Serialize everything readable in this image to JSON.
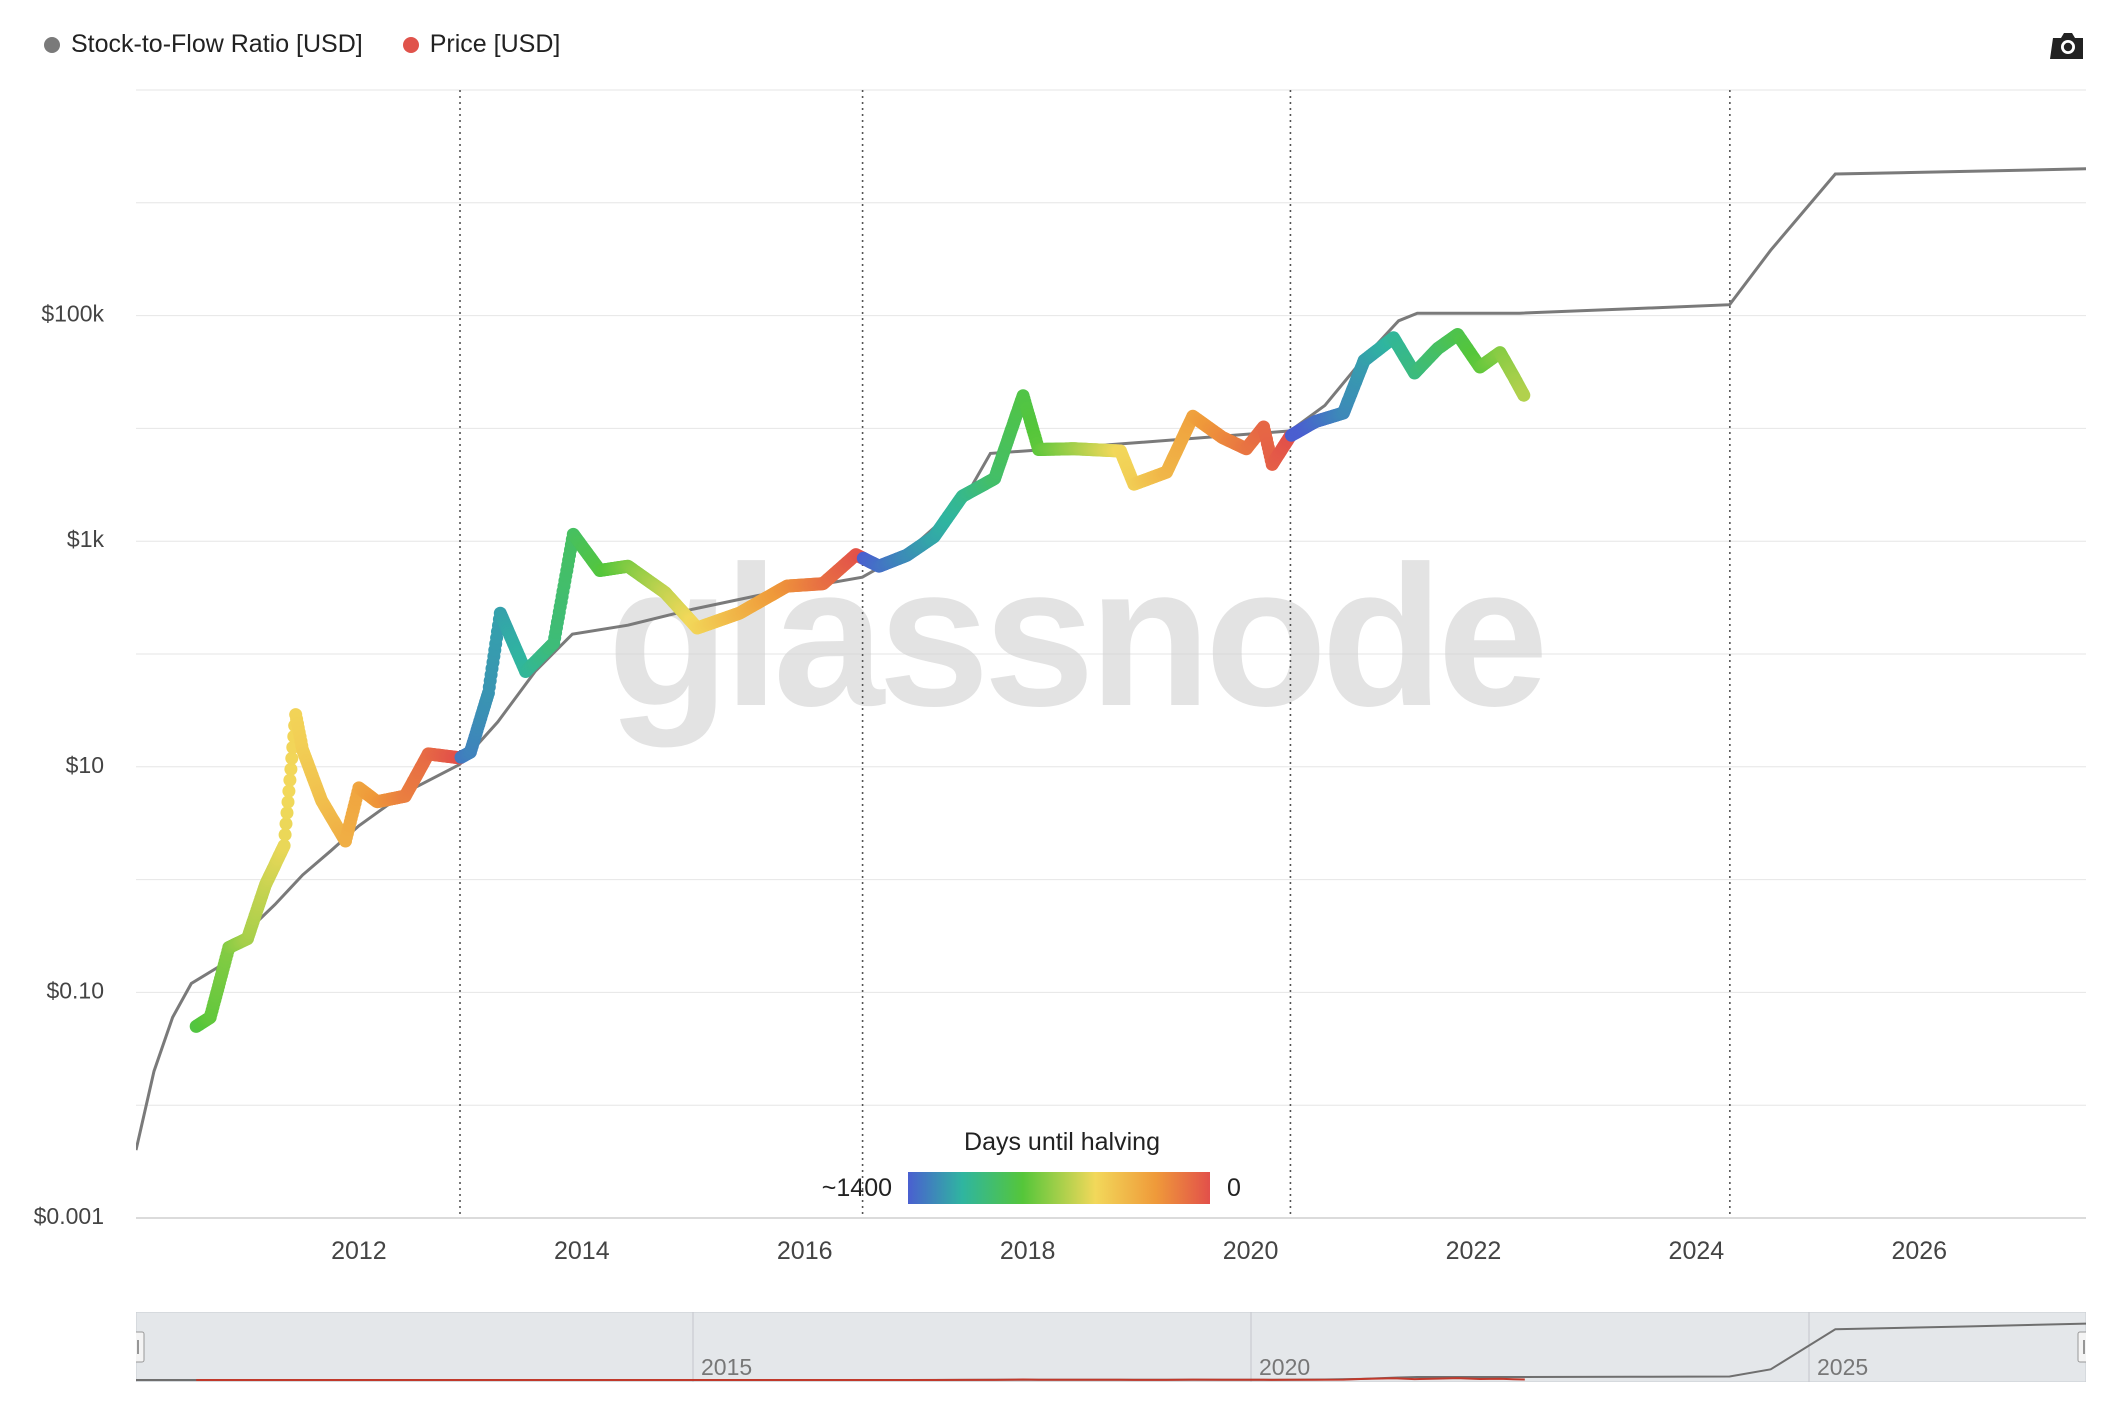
{
  "legend": {
    "items": [
      {
        "label": "Stock-to-Flow Ratio [USD]",
        "color": "#7a7a7a"
      },
      {
        "label": "Price [USD]",
        "color": "#e0534b"
      }
    ]
  },
  "toolbar": {
    "camera_icon": "camera-icon"
  },
  "watermark": "glassnode",
  "colorbar": {
    "title": "Days until halving",
    "left_label": "~1400",
    "right_label": "0",
    "colors": [
      "#4a5fd0",
      "#2fb5a0",
      "#55c63a",
      "#f2d85a",
      "#ef9a3a",
      "#e2504a"
    ]
  },
  "navigator": {
    "labels": [
      "2015",
      "2020",
      "2025"
    ],
    "handle_left_icon": "drag-handle-icon",
    "handle_right_icon": "drag-handle-icon"
  },
  "chart_data": {
    "type": "line",
    "title": "",
    "xlabel": "",
    "ylabel": "",
    "y_scale": "log",
    "xlim": [
      "2010-01-01",
      "2027-07-01"
    ],
    "ylim": [
      0.001,
      10000000
    ],
    "x_ticks": [
      "2012",
      "2014",
      "2016",
      "2018",
      "2020",
      "2022",
      "2024",
      "2026"
    ],
    "y_ticks": [
      {
        "value": 0.001,
        "label": "$0.001"
      },
      {
        "value": 0.1,
        "label": "$0.10"
      },
      {
        "value": 10,
        "label": "$10"
      },
      {
        "value": 1000,
        "label": "$1k"
      },
      {
        "value": 100000,
        "label": "$100k"
      }
    ],
    "halvings": [
      "2012-11-28",
      "2016-07-09",
      "2020-05-11",
      "2024-04-20"
    ],
    "grid": true,
    "legend_position": "top-left",
    "series": [
      {
        "name": "Stock-to-Flow Ratio [USD]",
        "color": "#7a7a7a",
        "points": [
          [
            "2010-01-01",
            0.004
          ],
          [
            "2010-03-01",
            0.02
          ],
          [
            "2010-05-01",
            0.06
          ],
          [
            "2010-07-01",
            0.12
          ],
          [
            "2010-10-01",
            0.17
          ],
          [
            "2011-01-01",
            0.35
          ],
          [
            "2011-04-01",
            0.6
          ],
          [
            "2011-07-01",
            1.1
          ],
          [
            "2011-10-01",
            1.8
          ],
          [
            "2012-01-01",
            3.0
          ],
          [
            "2012-04-01",
            4.5
          ],
          [
            "2012-07-01",
            6.5
          ],
          [
            "2012-11-27",
            10.5
          ],
          [
            "2013-04-01",
            25
          ],
          [
            "2013-08-01",
            70
          ],
          [
            "2013-12-01",
            150
          ],
          [
            "2014-06-01",
            180
          ],
          [
            "2015-01-01",
            250
          ],
          [
            "2015-08-01",
            330
          ],
          [
            "2016-07-08",
            480
          ],
          [
            "2016-12-01",
            800
          ],
          [
            "2017-06-01",
            2200
          ],
          [
            "2017-09-01",
            6000
          ],
          [
            "2018-03-01",
            6500
          ],
          [
            "2019-01-01",
            7500
          ],
          [
            "2020-05-10",
            9500
          ],
          [
            "2020-09-01",
            16000
          ],
          [
            "2021-01-01",
            40000
          ],
          [
            "2021-05-01",
            90000
          ],
          [
            "2021-07-01",
            105000
          ],
          [
            "2022-06-01",
            105000
          ],
          [
            "2023-06-01",
            115000
          ],
          [
            "2024-04-19",
            125000
          ],
          [
            "2024-09-01",
            380000
          ],
          [
            "2025-04-01",
            1800000
          ],
          [
            "2026-06-01",
            1900000
          ],
          [
            "2027-07-01",
            2000000
          ]
        ]
      },
      {
        "name": "Price [USD]",
        "color": "#e0534b",
        "colorscale": "days_until_halving",
        "points": [
          [
            "2010-07-17",
            0.05
          ],
          [
            "2010-09-01",
            0.06
          ],
          [
            "2010-11-01",
            0.25
          ],
          [
            "2011-01-01",
            0.3
          ],
          [
            "2011-03-01",
            0.9
          ],
          [
            "2011-05-01",
            2.0
          ],
          [
            "2011-06-08",
            29
          ],
          [
            "2011-07-01",
            14
          ],
          [
            "2011-09-01",
            5
          ],
          [
            "2011-11-18",
            2.2
          ],
          [
            "2012-01-01",
            6.5
          ],
          [
            "2012-03-01",
            4.9
          ],
          [
            "2012-06-01",
            5.5
          ],
          [
            "2012-08-16",
            13
          ],
          [
            "2012-11-28",
            12
          ],
          [
            "2013-01-01",
            13.5
          ],
          [
            "2013-03-01",
            45
          ],
          [
            "2013-04-09",
            230
          ],
          [
            "2013-07-01",
            70
          ],
          [
            "2013-10-01",
            125
          ],
          [
            "2013-12-04",
            1150
          ],
          [
            "2014-03-01",
            550
          ],
          [
            "2014-06-01",
            600
          ],
          [
            "2014-10-01",
            350
          ],
          [
            "2015-01-14",
            170
          ],
          [
            "2015-06-01",
            230
          ],
          [
            "2015-11-04",
            400
          ],
          [
            "2016-03-01",
            420
          ],
          [
            "2016-06-17",
            760
          ],
          [
            "2016-09-01",
            600
          ],
          [
            "2016-12-01",
            750
          ],
          [
            "2017-03-01",
            1100
          ],
          [
            "2017-06-01",
            2500
          ],
          [
            "2017-09-15",
            3600
          ],
          [
            "2017-12-17",
            19500
          ],
          [
            "2018-02-06",
            6500
          ],
          [
            "2018-06-01",
            6600
          ],
          [
            "2018-11-01",
            6300
          ],
          [
            "2018-12-15",
            3200
          ],
          [
            "2019-04-01",
            4100
          ],
          [
            "2019-06-26",
            12800
          ],
          [
            "2019-10-01",
            8300
          ],
          [
            "2019-12-18",
            6600
          ],
          [
            "2020-02-13",
            10300
          ],
          [
            "2020-03-12",
            4800
          ],
          [
            "2020-05-11",
            8600
          ],
          [
            "2020-08-01",
            11500
          ],
          [
            "2020-11-01",
            13700
          ],
          [
            "2021-01-08",
            40000
          ],
          [
            "2021-04-14",
            63500
          ],
          [
            "2021-06-22",
            31000
          ],
          [
            "2021-09-06",
            51000
          ],
          [
            "2021-11-10",
            68000
          ],
          [
            "2022-01-22",
            35000
          ],
          [
            "2022-03-29",
            47000
          ],
          [
            "2022-05-12",
            29000
          ],
          [
            "2022-06-18",
            19000
          ]
        ]
      }
    ]
  }
}
